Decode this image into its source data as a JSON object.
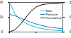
{
  "chart_data": {
    "type": "line",
    "x": [
      0,
      10,
      20,
      30,
      40,
      50,
      60,
      70,
      80,
      90,
      100
    ],
    "series": [
      {
        "name": "Rate",
        "color": "#17becf",
        "values": [
          100,
          62,
          42,
          30,
          22,
          16,
          12,
          9,
          7,
          5,
          4
        ]
      },
      {
        "name": "Pressure",
        "color": "#1f77b4",
        "values": [
          60,
          55,
          48,
          40,
          33,
          27,
          22,
          18,
          15,
          13,
          12
        ]
      },
      {
        "name": "Cumulative",
        "color": "#000000",
        "axis": "y2",
        "values": [
          0,
          0.08,
          0.25,
          0.48,
          0.7,
          0.85,
          0.92,
          0.95,
          0.97,
          0.98,
          0.99
        ]
      }
    ],
    "xlim": [
      0,
      100
    ],
    "xticks": [
      0,
      50,
      100
    ],
    "ylim": [
      0,
      100
    ],
    "yticks": [
      0,
      50,
      100
    ],
    "y2lim": [
      0,
      1
    ],
    "y2ticks": [
      0,
      0.5,
      1
    ],
    "legend": "right"
  }
}
